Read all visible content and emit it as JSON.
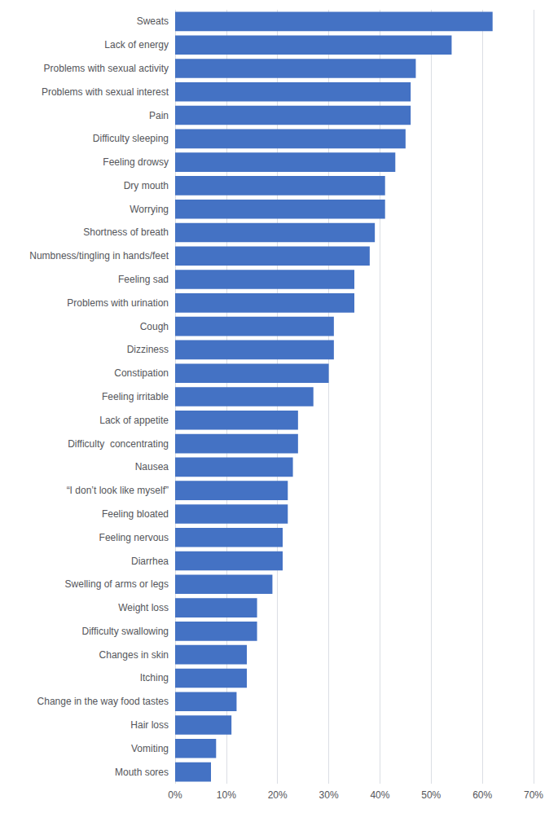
{
  "chart_data": {
    "type": "bar",
    "orientation": "horizontal",
    "categories": [
      "Sweats",
      "Lack of energy",
      "Problems with sexual activity",
      "Problems with sexual interest",
      "Pain",
      "Difficulty sleeping",
      "Feeling drowsy",
      "Dry mouth",
      "Worrying",
      "Shortness of breath",
      "Numbness/tingling in hands/feet",
      "Feeling sad",
      "Problems with urination",
      "Cough",
      "Dizziness",
      "Constipation",
      "Feeling irritable",
      "Lack of appetite",
      "Difficulty  concentrating",
      "Nausea",
      "“I don’t look like myself”",
      "Feeling bloated",
      "Feeling nervous",
      "Diarrhea",
      "Swelling of arms or legs",
      "Weight loss",
      "Difficulty swallowing",
      "Changes in skin",
      "Itching",
      "Change in the way food tastes",
      "Hair loss",
      "Vomiting",
      "Mouth sores"
    ],
    "values": [
      62,
      54,
      47,
      46,
      46,
      45,
      43,
      41,
      41,
      39,
      38,
      35,
      35,
      31,
      31,
      30,
      27,
      24,
      24,
      23,
      22,
      22,
      21,
      21,
      19,
      16,
      16,
      14,
      14,
      12,
      11,
      8,
      7
    ],
    "color": "#4472C4",
    "xlim": [
      0,
      70
    ],
    "xticks": [
      {
        "value": 0,
        "label": "0%"
      },
      {
        "value": 10,
        "label": "10%"
      },
      {
        "value": 20,
        "label": "20%"
      },
      {
        "value": 30,
        "label": "30%"
      },
      {
        "value": 40,
        "label": "40%"
      },
      {
        "value": 50,
        "label": "50%"
      },
      {
        "value": 60,
        "label": "60%"
      },
      {
        "value": 70,
        "label": "70%"
      }
    ],
    "grid": true
  }
}
